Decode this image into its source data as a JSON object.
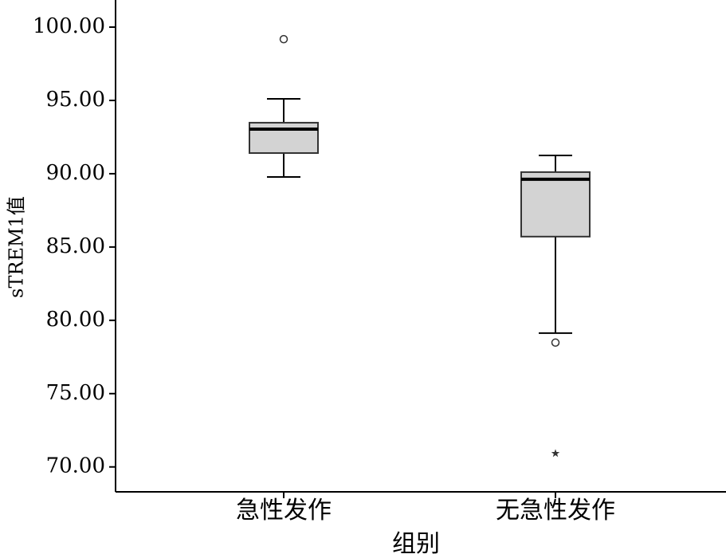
{
  "chart_data": {
    "type": "box",
    "x_label": "组别",
    "y_label": "sTREM1值",
    "categories": [
      "急性发作",
      "无急性发作"
    ],
    "boxes": [
      {
        "min": 89.78,
        "q1": 91.41,
        "median": 93.04,
        "q3": 93.48,
        "max": 95.11,
        "outliers": [
          99.18
        ],
        "extremes": []
      },
      {
        "min": 79.13,
        "q1": 85.71,
        "median": 89.62,
        "q3": 90.11,
        "max": 91.25,
        "outliers": [
          78.48
        ],
        "extremes": [
          70.92
        ]
      }
    ],
    "color": "#d3d3d3",
    "ylim": [
      68.3,
      101.85
    ],
    "yticks": [
      {
        "value": 70,
        "label": "70.00"
      },
      {
        "value": 75,
        "label": "75.00"
      },
      {
        "value": 80,
        "label": "80.00"
      },
      {
        "value": 85,
        "label": "85.00"
      },
      {
        "value": 90,
        "label": "90.00"
      },
      {
        "value": 95,
        "label": "95.00"
      },
      {
        "value": 100,
        "label": "100.00"
      }
    ]
  }
}
